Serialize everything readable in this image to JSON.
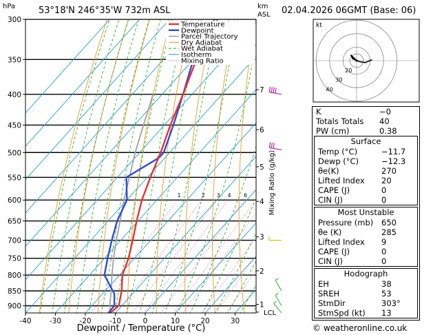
{
  "header": {
    "location": "53°18'N  246°35'W  732m  ASL",
    "datetime": "02.04.2026  06GMT  (Base: 06)",
    "hpa_label": "hPa",
    "km_label": "km",
    "asl_label": "ASL"
  },
  "footer": {
    "copyright": "© weatheronline.co.uk"
  },
  "colors": {
    "temperature": "#e8322e",
    "dewpoint": "#2f49e0",
    "parcel": "#a0a0a0",
    "dry_adiabat": "#f0961e",
    "wet_adiabat": "#2db52d",
    "isotherm": "#1ea0dc",
    "mixing_ratio": "#e040b0",
    "wind": "#b020b0",
    "wind_low": "#c8c800",
    "wind_sfc": "#40c040"
  },
  "chart_data": {
    "type": "line",
    "title": "Skew-T log-P diagram",
    "xlabel": "Dewpoint / Temperature (°C)",
    "ylabel": "hPa",
    "y2label": "Mixing Ratio (g/kg)",
    "xlim": [
      -40,
      37
    ],
    "ylim": [
      925,
      300
    ],
    "x_ticks": [
      "-40",
      "-30",
      "-20",
      "-10",
      "0",
      "10",
      "20",
      "30"
    ],
    "pressure_levels": [
      "300",
      "350",
      "400",
      "450",
      "500",
      "550",
      "600",
      "650",
      "700",
      "750",
      "800",
      "850",
      "900"
    ],
    "km_levels": [
      {
        "km": "1",
        "p": 895
      },
      {
        "km": "2",
        "p": 787
      },
      {
        "km": "3",
        "p": 691
      },
      {
        "km": "4",
        "p": 603
      },
      {
        "km": "5",
        "p": 528
      },
      {
        "km": "6",
        "p": 458
      },
      {
        "km": "7",
        "p": 393
      }
    ],
    "lcl_label": "LCL",
    "lcl_p": 922,
    "mixing_ratio_values": [
      "1",
      "2",
      "3",
      "4",
      "6",
      "8",
      "10",
      "15",
      "20",
      "25"
    ],
    "legend": [
      "Temperature",
      "Dewpoint",
      "Parcel Trajectory",
      "Dry Adiabat",
      "Wet Adiabat",
      "Isotherm",
      "Mixing Ratio"
    ],
    "series": [
      {
        "name": "Temperature",
        "points": [
          [
            925,
            -11.7
          ],
          [
            900,
            -11
          ],
          [
            850,
            -14.5
          ],
          [
            800,
            -19
          ],
          [
            750,
            -22
          ],
          [
            700,
            -26
          ],
          [
            650,
            -30.5
          ],
          [
            600,
            -35
          ],
          [
            550,
            -39
          ],
          [
            500,
            -43
          ],
          [
            450,
            -48
          ],
          [
            400,
            -53
          ],
          [
            350,
            -59
          ],
          [
            300,
            -64
          ]
        ]
      },
      {
        "name": "Dewpoint",
        "points": [
          [
            925,
            -12.3
          ],
          [
            900,
            -12.5
          ],
          [
            860,
            -16
          ],
          [
            800,
            -25
          ],
          [
            750,
            -29
          ],
          [
            700,
            -33
          ],
          [
            650,
            -37
          ],
          [
            600,
            -40
          ],
          [
            550,
            -47
          ],
          [
            510,
            -42
          ],
          [
            500,
            -42
          ],
          [
            450,
            -47
          ],
          [
            400,
            -53
          ],
          [
            350,
            -60
          ],
          [
            300,
            -65
          ]
        ]
      },
      {
        "name": "Parcel Trajectory",
        "points": [
          [
            925,
            -11.7
          ],
          [
            900,
            -14
          ],
          [
            850,
            -18
          ],
          [
            800,
            -22.5
          ],
          [
            750,
            -27
          ],
          [
            700,
            -31.5
          ],
          [
            650,
            -36
          ],
          [
            600,
            -41
          ],
          [
            550,
            -46
          ],
          [
            500,
            -51.5
          ],
          [
            450,
            -57
          ],
          [
            400,
            -63
          ]
        ]
      }
    ],
    "winds": [
      {
        "p": 400,
        "dir": 280,
        "kt": 40
      },
      {
        "p": 495,
        "dir": 280,
        "kt": 30
      },
      {
        "p": 700,
        "dir": 270,
        "kt": 5
      },
      {
        "p": 850,
        "dir": 330,
        "kt": 5
      },
      {
        "p": 900,
        "dir": 330,
        "kt": 5
      },
      {
        "p": 925,
        "dir": 320,
        "kt": 5
      }
    ]
  },
  "hodograph": {
    "unit_label": "kt",
    "ring_labels": [
      "20",
      "30",
      "40"
    ],
    "trace": [
      [
        0,
        0
      ],
      [
        -3,
        3
      ],
      [
        -6,
        6
      ],
      [
        -4,
        2
      ],
      [
        3,
        -1
      ],
      [
        9,
        -2
      ],
      [
        16,
        1
      ]
    ]
  },
  "indices": [
    {
      "label": "K",
      "value": "−0"
    },
    {
      "label": "Totals Totals",
      "value": "40"
    },
    {
      "label": "PW (cm)",
      "value": "0.38"
    }
  ],
  "surface": {
    "title": "Surface",
    "rows": [
      {
        "label": "Temp (°C)",
        "value": "−11.7"
      },
      {
        "label": "Dewp (°C)",
        "value": "−12.3"
      },
      {
        "label": "θe(K)",
        "value": "270"
      },
      {
        "label": "Lifted Index",
        "value": "20"
      },
      {
        "label": "CAPE (J)",
        "value": "0"
      },
      {
        "label": "CIN (J)",
        "value": "0"
      }
    ]
  },
  "most_unstable": {
    "title": "Most Unstable",
    "rows": [
      {
        "label": "Pressure (mb)",
        "value": "650"
      },
      {
        "label": "θe (K)",
        "value": "285"
      },
      {
        "label": "Lifted Index",
        "value": "9"
      },
      {
        "label": "CAPE (J)",
        "value": "0"
      },
      {
        "label": "CIN (J)",
        "value": "0"
      }
    ]
  },
  "hodograph_panel": {
    "title": "Hodograph",
    "rows": [
      {
        "label": "EH",
        "value": "38"
      },
      {
        "label": "SREH",
        "value": "53"
      },
      {
        "label": "StmDir",
        "value": "303°"
      },
      {
        "label": "StmSpd (kt)",
        "value": "13"
      }
    ]
  }
}
